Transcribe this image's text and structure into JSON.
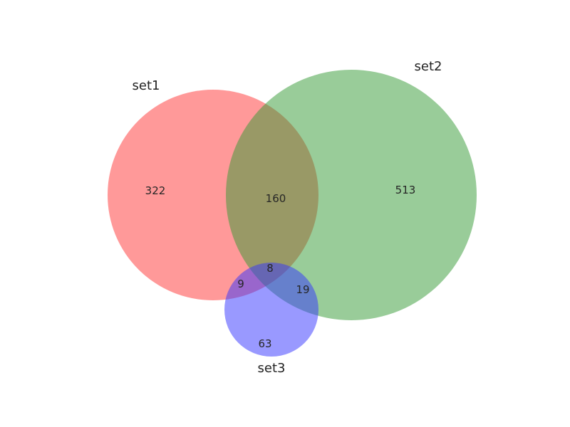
{
  "diagram": {
    "type": "venn3",
    "sets": [
      {
        "id": "set1",
        "label": "set1",
        "color": "#ff3333"
      },
      {
        "id": "set2",
        "label": "set2",
        "color": "#339933"
      },
      {
        "id": "set3",
        "label": "set3",
        "color": "#3333ff"
      }
    ],
    "regions": {
      "set1_only": "322",
      "set2_only": "513",
      "set3_only": "63",
      "set1_set2": "160",
      "set1_set3": "9",
      "set2_set3": "19",
      "set1_set2_set3": "8"
    },
    "overlap_colors": {
      "set1_set2": "#e0bd96",
      "set1_set3": "#dd96dd",
      "set2_set3": "#99bbdd"
    },
    "opacity": 0.5
  }
}
